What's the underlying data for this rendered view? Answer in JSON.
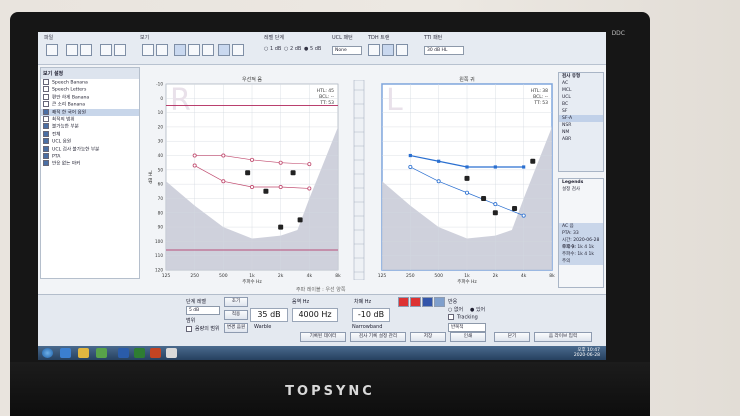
{
  "monitor": {
    "brand": "TOPSYNC",
    "logo_text": "DDC"
  },
  "toolbar": {
    "menu_label": "파일",
    "view_label": "보기",
    "step_label": "레벨 단계",
    "step_options": [
      "1 dB",
      "2 dB",
      "5 dB"
    ],
    "ucl_label": "UCL 패턴",
    "ucl_value": "None",
    "tdh_label": "TDH 트랜",
    "tin_label": "TTI 패턴",
    "tin_value": "30 dB HL"
  },
  "left_panel": {
    "title": "보기 설정",
    "items": [
      {
        "label": "Speech Banana",
        "checked": false
      },
      {
        "label": "Speech Letters",
        "checked": false
      },
      {
        "label": "편안 하게 Banana",
        "checked": false
      },
      {
        "label": "큰 소리 Banana",
        "checked": false
      },
      {
        "label": "쾌적 한 국어 음원",
        "checked": true
      },
      {
        "label": "최적의 범위",
        "checked": false
      },
      {
        "label": "불가능한 부분",
        "checked": true
      },
      {
        "label": "전체",
        "checked": true
      },
      {
        "label": "UCL 음원",
        "checked": true
      },
      {
        "label": "UCL 검사 불가능한 부분",
        "checked": true
      },
      {
        "label": "PTA",
        "checked": true
      },
      {
        "label": "반응 없는 마커",
        "checked": true
      }
    ]
  },
  "left_graph": {
    "title": "우선적 음",
    "info": [
      "HTL: 45",
      "BCL: --",
      "TT: 53"
    ],
    "watermark": "R",
    "y_ticks": [
      "-10",
      "0",
      "10",
      "20",
      "30",
      "40",
      "50",
      "60",
      "70",
      "80",
      "90",
      "100",
      "110",
      "120"
    ],
    "x_ticks": [
      "125",
      "250",
      "500",
      "1k",
      "2k",
      "4k",
      "8k"
    ],
    "x_label": "주파수 Hz",
    "y_label": "dB HL",
    "series_ucl": [
      [
        125,
        5
      ],
      [
        250,
        5
      ],
      [
        500,
        5
      ],
      [
        1000,
        5
      ],
      [
        2000,
        5
      ],
      [
        4000,
        5
      ],
      [
        8000,
        5
      ]
    ],
    "series_ac": [
      [
        250,
        40
      ],
      [
        500,
        40
      ],
      [
        1000,
        43
      ],
      [
        2000,
        45
      ],
      [
        4000,
        46
      ]
    ],
    "series_bc": [
      [
        250,
        47
      ],
      [
        500,
        58
      ],
      [
        1000,
        62
      ],
      [
        2000,
        62
      ],
      [
        4000,
        63
      ]
    ],
    "series_low": [
      [
        125,
        106
      ],
      [
        250,
        106
      ],
      [
        500,
        106
      ],
      [
        1000,
        106
      ],
      [
        2000,
        106
      ],
      [
        4000,
        106
      ],
      [
        8000,
        106
      ]
    ]
  },
  "right_graph": {
    "title": "왼쪽 귀",
    "info": [
      "HTL: 38",
      "BCL: --",
      "TT: 53"
    ],
    "watermark": "L",
    "x_ticks": [
      "125",
      "250",
      "500",
      "1k",
      "2k",
      "4k",
      "8k"
    ],
    "x_label": "주파수 Hz",
    "series_ac": [
      [
        250,
        40
      ],
      [
        500,
        44
      ],
      [
        1000,
        48
      ],
      [
        2000,
        48
      ],
      [
        4000,
        48
      ]
    ],
    "series_bc": [
      [
        250,
        48
      ],
      [
        500,
        58
      ],
      [
        1000,
        66
      ],
      [
        2000,
        74
      ],
      [
        4000,
        82
      ]
    ]
  },
  "middle_caption": "주파 레이블 : 우선 양쪽",
  "right_panel": {
    "title": "검사 유형",
    "items": [
      "AC",
      "MCL",
      "UCL",
      "BC",
      "SF",
      "SF-A",
      "NSR",
      "NM",
      "ABR"
    ],
    "legend_title": "Legends",
    "detail_title": "설정 검사",
    "details": [
      "AC 음",
      "PTA: 33",
      "시간: 2020-06-28 오후 3:",
      "주파수: 1k 4 1k",
      "주파수: 1k 4 1k",
      "주의"
    ]
  },
  "bottom": {
    "step_label": "단계 레벨",
    "step_value": "5 dB",
    "range_label": "범위",
    "range_check": "음량의 범위",
    "btn_reset": "초기",
    "btn_apply": "적용",
    "btn_change": "변경 음원",
    "freq_label": "음역 Hz",
    "level_value": "35 dB",
    "freq_value": "4000 Hz",
    "mask_label": "차폐 Hz",
    "mask_value": "-10 dB",
    "mask_sub": "Narrowband",
    "stim_sub": "Warble",
    "response_label": "반응",
    "response_opts": [
      "없어",
      "있어",
      "Tracking"
    ],
    "response_sub": "반복적"
  },
  "actions": [
    "기록된 데이터",
    "검사 기록 설정 관리",
    "저장",
    "인쇄",
    "닫기",
    "음 라이브 입력"
  ],
  "taskbar": {
    "time": "오후 10:47",
    "date": "2020-06-28"
  }
}
